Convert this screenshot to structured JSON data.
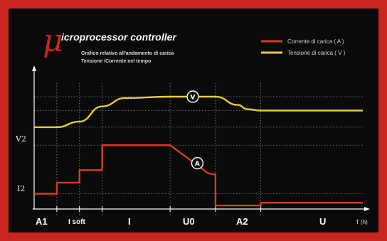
{
  "chart_data": {
    "type": "line",
    "title_symbol": "μ",
    "title": "icroprocessor controller",
    "subtitle_lines": [
      "Grafico relativo all'andamento di carica",
      "Tensione /Corrente nel tempo"
    ],
    "xlabel": "T (h)",
    "y_ticks": [
      "V2",
      "I2"
    ],
    "phases": [
      "A1",
      "I soft",
      "I",
      "U0",
      "A2",
      "U"
    ],
    "series": [
      {
        "name": "Corrente di carica ( A )",
        "color": "#d63a2a",
        "marker": "A",
        "points": [
          [
            0,
            0.1
          ],
          [
            1,
            0.1
          ],
          [
            1,
            0.18
          ],
          [
            2,
            0.18
          ],
          [
            2,
            0.27
          ],
          [
            3,
            0.27
          ],
          [
            3,
            0.45
          ],
          [
            6,
            0.45
          ],
          [
            7.5,
            0.27
          ],
          [
            8,
            0.24
          ],
          [
            8,
            0.015
          ],
          [
            10,
            0.015
          ],
          [
            10,
            0.035
          ],
          [
            14.5,
            0.035
          ]
        ]
      },
      {
        "name": "Tensione di carica ( V )",
        "color": "#e6cc3a",
        "marker": "V",
        "points": [
          [
            0,
            0.58
          ],
          [
            1,
            0.58
          ],
          [
            2,
            0.62
          ],
          [
            3,
            0.73
          ],
          [
            4,
            0.79
          ],
          [
            6,
            0.8
          ],
          [
            8,
            0.8
          ],
          [
            9,
            0.74
          ],
          [
            9.4,
            0.71
          ],
          [
            10,
            0.7
          ],
          [
            14.5,
            0.7
          ]
        ]
      }
    ],
    "grid": true,
    "legend_position": "top-right"
  }
}
